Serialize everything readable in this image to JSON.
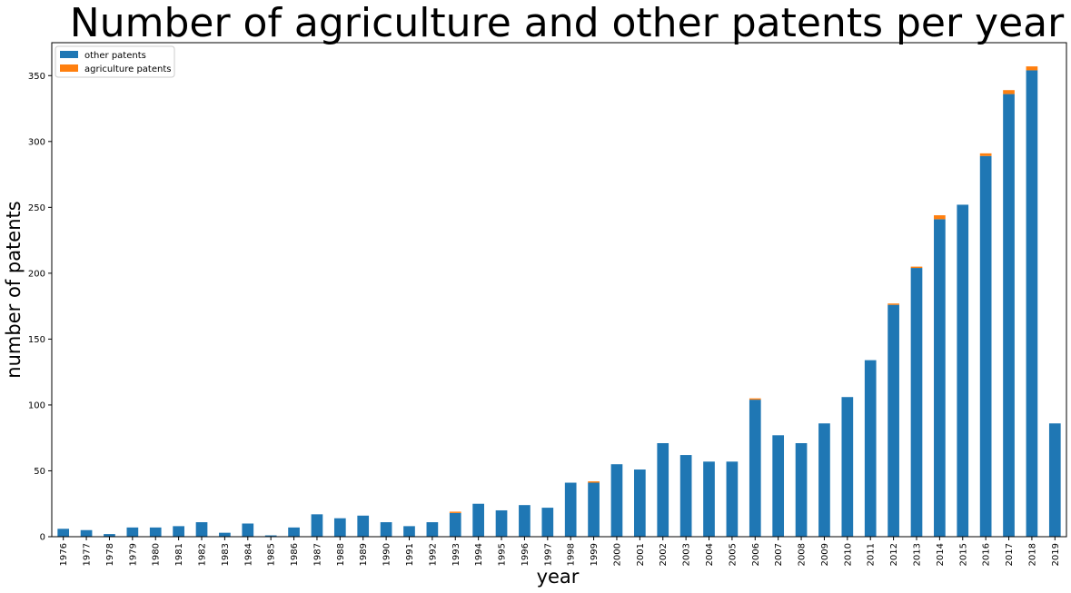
{
  "chart_data": {
    "type": "bar",
    "stacked": true,
    "title": "Number of agriculture and other patents per year",
    "xlabel": "year",
    "ylabel": "number of patents",
    "ylim": [
      0,
      375
    ],
    "yticks": [
      0,
      50,
      100,
      150,
      200,
      250,
      300,
      350
    ],
    "legend_position": "top-left",
    "categories": [
      "1976",
      "1977",
      "1978",
      "1979",
      "1980",
      "1981",
      "1982",
      "1983",
      "1984",
      "1985",
      "1986",
      "1987",
      "1988",
      "1989",
      "1990",
      "1991",
      "1992",
      "1993",
      "1994",
      "1995",
      "1996",
      "1997",
      "1998",
      "1999",
      "2000",
      "2001",
      "2002",
      "2003",
      "2004",
      "2005",
      "2006",
      "2007",
      "2008",
      "2009",
      "2010",
      "2011",
      "2012",
      "2013",
      "2014",
      "2015",
      "2016",
      "2017",
      "2018",
      "2019"
    ],
    "series": [
      {
        "name": "other patents",
        "color": "#1f77b4",
        "values": [
          6,
          5,
          2,
          7,
          7,
          8,
          11,
          3,
          10,
          1,
          7,
          17,
          14,
          16,
          11,
          8,
          11,
          18,
          25,
          20,
          24,
          22,
          41,
          41,
          55,
          51,
          71,
          62,
          57,
          57,
          104,
          77,
          71,
          86,
          106,
          134,
          176,
          204,
          241,
          252,
          289,
          336,
          354,
          86
        ]
      },
      {
        "name": "agriculture patents",
        "color": "#ff7f0e",
        "values": [
          0,
          0,
          0,
          0,
          0,
          0,
          0,
          0,
          0,
          0,
          0,
          0,
          0,
          0,
          0,
          0,
          0,
          1,
          0,
          0,
          0,
          0,
          0,
          1,
          0,
          0,
          0,
          0,
          0,
          0,
          1,
          0,
          0,
          0,
          0,
          0,
          1,
          1,
          3,
          0,
          2,
          3,
          3,
          0
        ]
      }
    ]
  }
}
